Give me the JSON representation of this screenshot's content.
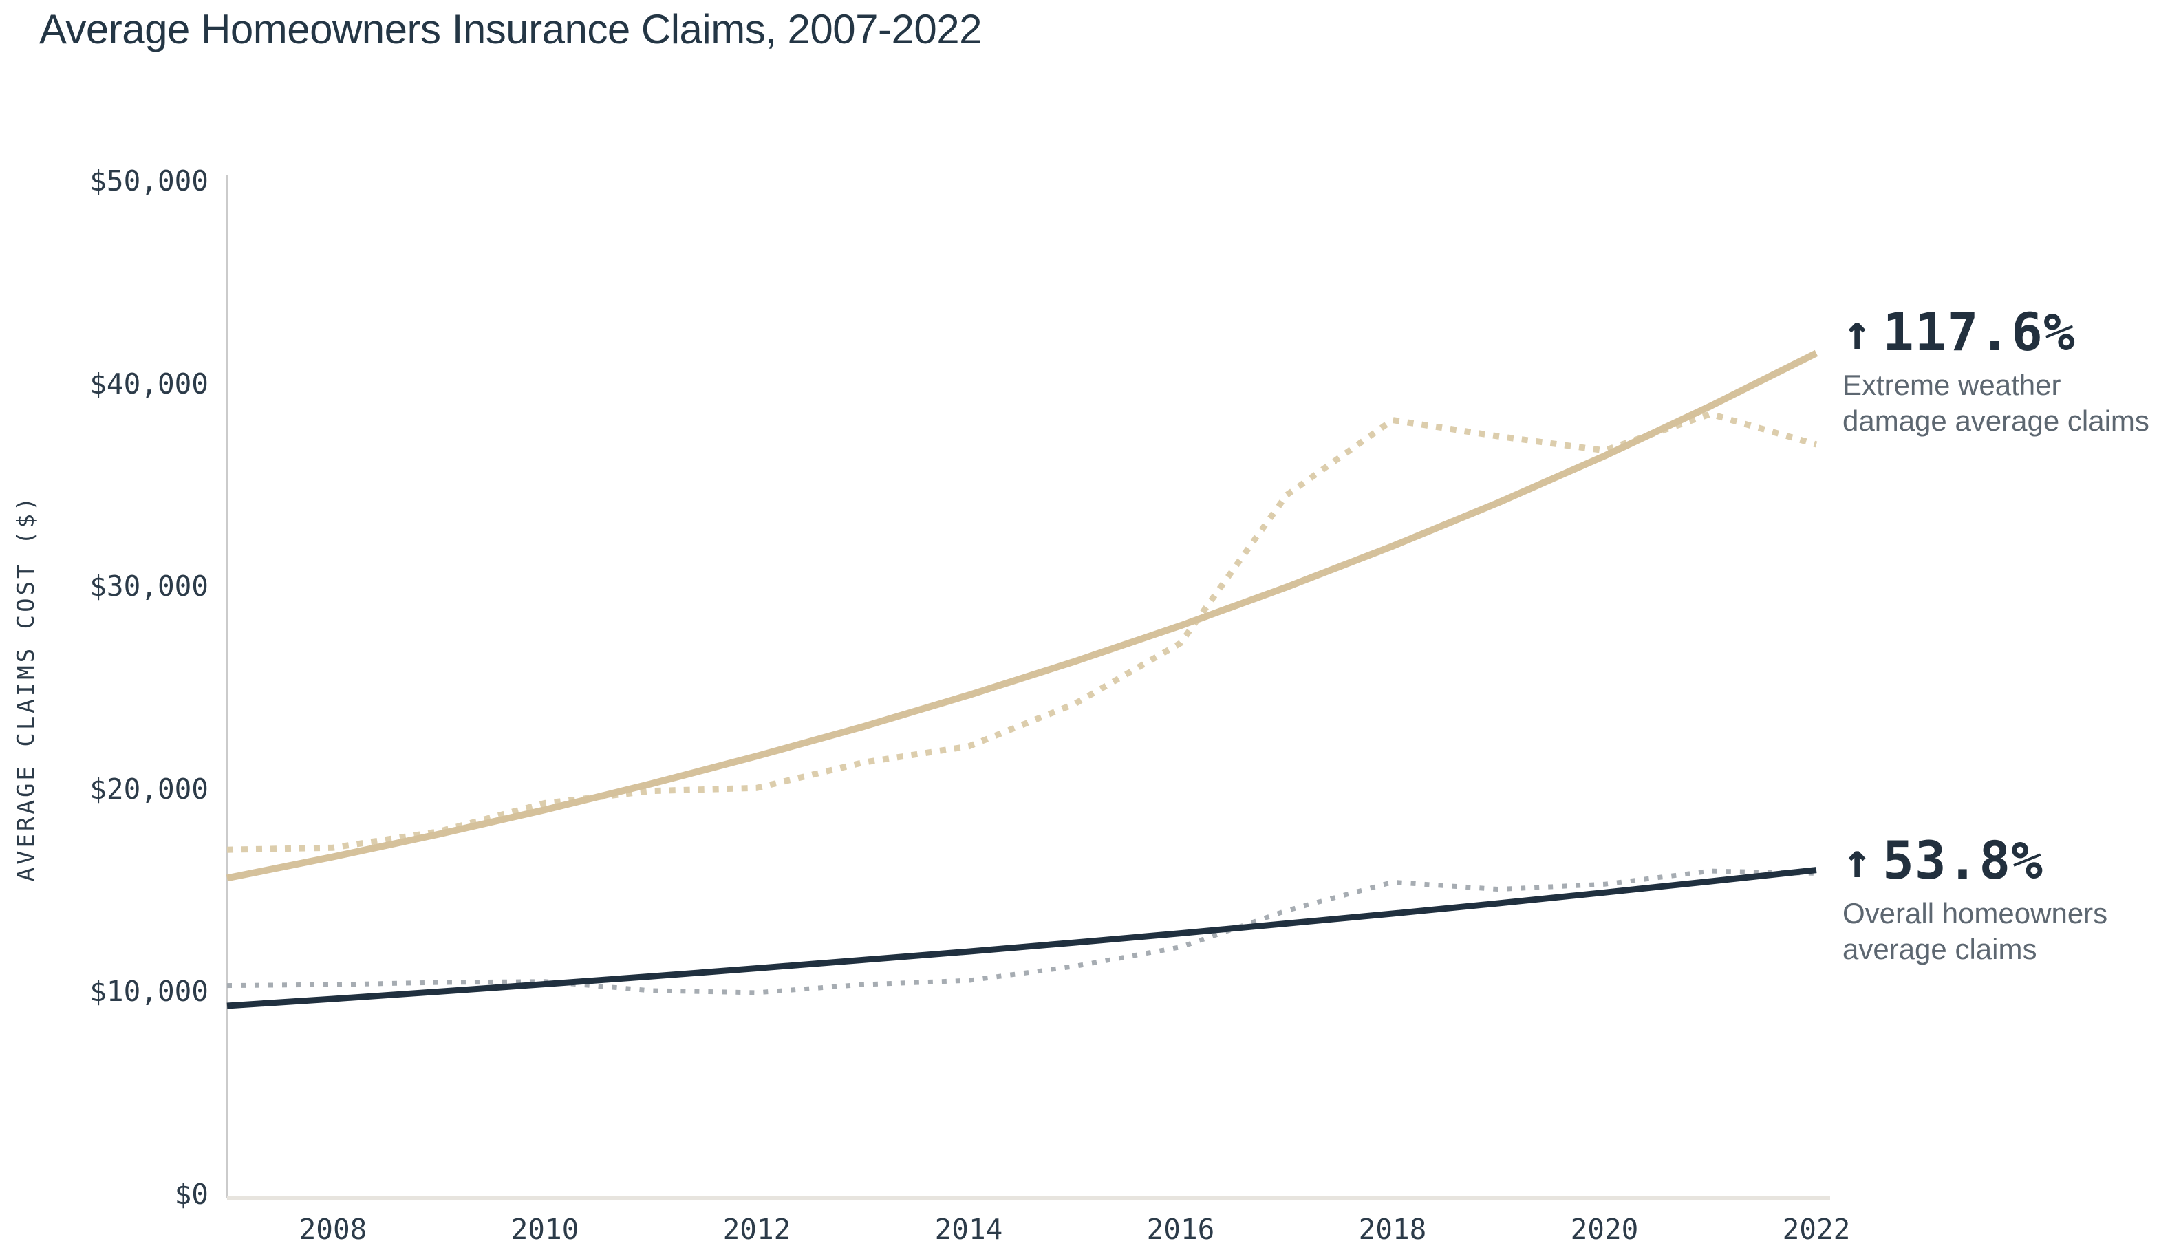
{
  "title": "Average Homeowners Insurance Claims, 2007-2022",
  "y_axis": {
    "title": "AVERAGE CLAIMS COST ($)",
    "tick_labels": [
      "$50,000",
      "$40,000",
      "$30,000",
      "$20,000",
      "$10,000",
      "$0"
    ],
    "tick_values": [
      50000,
      40000,
      30000,
      20000,
      10000,
      0
    ]
  },
  "x_axis": {
    "tick_labels": [
      "2008",
      "2010",
      "2012",
      "2014",
      "2016",
      "2018",
      "2020",
      "2022"
    ],
    "tick_values": [
      2008,
      2010,
      2012,
      2014,
      2016,
      2018,
      2020,
      2022
    ]
  },
  "annotations": {
    "extreme": {
      "arrow": "↑",
      "value": "117.6%",
      "label_line1": "Extreme weather",
      "label_line2": "damage average claims"
    },
    "overall": {
      "arrow": "↑",
      "value": "53.8%",
      "label_line1": "Overall homeowners",
      "label_line2": "average claims"
    }
  },
  "colors": {
    "title_text": "#243645",
    "tick_text": "#2c3b49",
    "annotation_value": "#22303e",
    "annotation_label": "#5d6771",
    "y_axis_line": "#cbcbcb",
    "x_axis_line": "#e7e4de",
    "extreme_trend": "#d5c19b",
    "extreme_actual": "#dccdac",
    "overall_trend": "#20303f",
    "overall_actual": "#a6acb2"
  },
  "chart_data": {
    "type": "line",
    "title": "Average Homeowners Insurance Claims, 2007-2022",
    "xlabel": "",
    "ylabel": "AVERAGE CLAIMS COST ($)",
    "xlim": [
      2007,
      2022
    ],
    "ylim": [
      0,
      50000
    ],
    "grid": false,
    "legend_position": "right-annotations",
    "x": [
      2007,
      2008,
      2009,
      2010,
      2011,
      2012,
      2013,
      2014,
      2015,
      2016,
      2017,
      2018,
      2019,
      2020,
      2021,
      2022
    ],
    "series": [
      {
        "name": "Extreme weather damage average claims (actual)",
        "style": "dotted",
        "color": "#dccdac",
        "width": 9,
        "dash": "9 12",
        "change_pct": "+117.6%",
        "values": [
          17000,
          17100,
          17900,
          19300,
          19900,
          20050,
          21300,
          22100,
          24200,
          27200,
          34500,
          38200,
          37400,
          36700,
          38500,
          37000
        ]
      },
      {
        "name": "Overall homeowners average claims (actual)",
        "style": "dotted",
        "color": "#a6acb2",
        "width": 7,
        "dash": "7 13",
        "change_pct": "+53.8%",
        "values": [
          10300,
          10350,
          10450,
          10500,
          10050,
          9950,
          10350,
          10550,
          11250,
          12200,
          14000,
          15400,
          15050,
          15300,
          15950,
          15840
        ]
      },
      {
        "name": "Overall homeowners average claims (trend)",
        "style": "solid",
        "color": "#20303f",
        "width": 9,
        "values": [
          9300,
          9640,
          10000,
          10370,
          10750,
          11150,
          11560,
          11980,
          12420,
          12880,
          13360,
          13850,
          14360,
          14890,
          15440,
          16000
        ]
      },
      {
        "name": "Extreme weather damage average claims (trend)",
        "style": "solid",
        "color": "#d5c19b",
        "width": 10,
        "values": [
          15600,
          16650,
          17770,
          18970,
          20250,
          21620,
          23070,
          24630,
          26290,
          28060,
          29960,
          31980,
          34130,
          36430,
          38890,
          41500
        ]
      }
    ]
  }
}
